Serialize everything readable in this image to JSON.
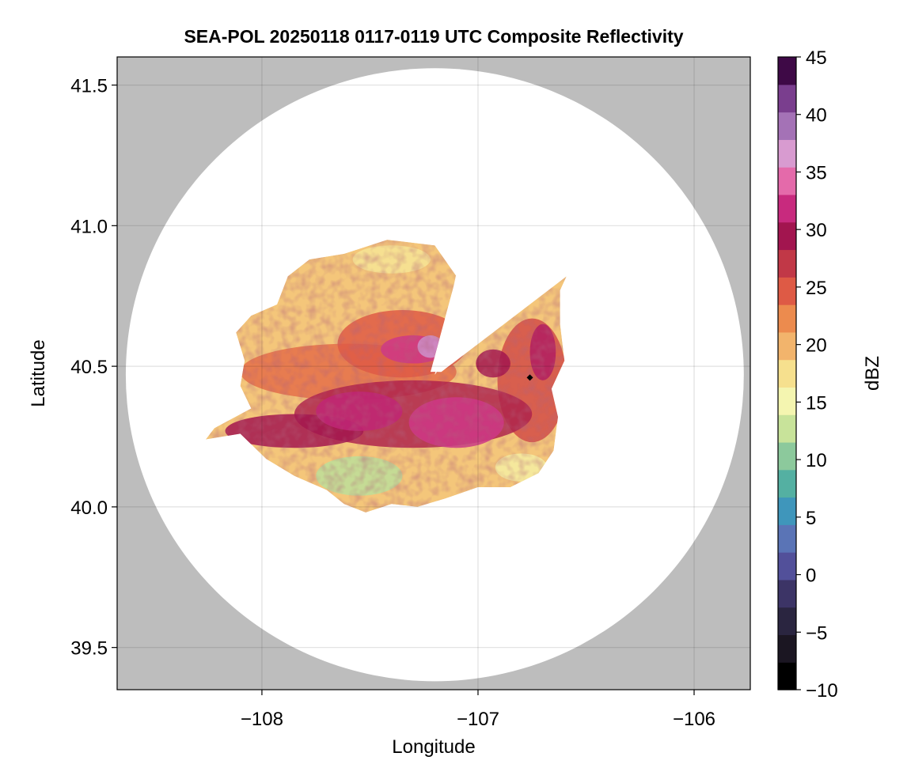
{
  "chart_data": {
    "type": "heatmap",
    "title": "SEA-POL 20250118 0117-0119 UTC Composite Reflectivity",
    "xlabel": "Longitude",
    "ylabel": "Latitude",
    "xlim": [
      -108.67,
      -105.74
    ],
    "ylim": [
      39.35,
      41.6
    ],
    "x_ticks": [
      -108,
      -107,
      -106
    ],
    "x_tick_labels": [
      "−108",
      "−107",
      "−106"
    ],
    "y_ticks": [
      39.5,
      40.0,
      40.5,
      41.0,
      41.5
    ],
    "y_tick_labels": [
      "39.5",
      "40.0",
      "40.5",
      "41.0",
      "41.5"
    ],
    "grid": true,
    "background_color": "#bdbdbd",
    "radar": {
      "center_lon": -107.2,
      "center_lat": 40.47,
      "range_lon": 1.43,
      "range_lat": 1.09
    },
    "beam_blockage_gap_deg": [
      52,
      78
    ],
    "echo_region": [
      [
        -108.26,
        40.24
      ],
      [
        -108.1,
        40.26
      ],
      [
        -107.98,
        40.17
      ],
      [
        -107.85,
        40.11
      ],
      [
        -107.7,
        40.06
      ],
      [
        -107.62,
        40.01
      ],
      [
        -107.52,
        39.98
      ],
      [
        -107.4,
        40.01
      ],
      [
        -107.28,
        40.0
      ],
      [
        -107.15,
        40.03
      ],
      [
        -107.0,
        40.07
      ],
      [
        -106.85,
        40.07
      ],
      [
        -106.72,
        40.12
      ],
      [
        -106.65,
        40.2
      ],
      [
        -106.63,
        40.32
      ],
      [
        -106.66,
        40.42
      ],
      [
        -106.6,
        40.52
      ],
      [
        -106.62,
        40.65
      ],
      [
        -106.62,
        40.77
      ],
      [
        -106.59,
        40.82
      ],
      [
        -107.17,
        40.48
      ],
      [
        -107.22,
        40.48
      ],
      [
        -107.1,
        40.82
      ],
      [
        -107.2,
        40.93
      ],
      [
        -107.42,
        40.95
      ],
      [
        -107.62,
        40.9
      ],
      [
        -107.78,
        40.88
      ],
      [
        -107.88,
        40.82
      ],
      [
        -107.93,
        40.72
      ],
      [
        -108.05,
        40.68
      ],
      [
        -108.12,
        40.62
      ],
      [
        -108.08,
        40.52
      ],
      [
        -108.1,
        40.43
      ],
      [
        -108.05,
        40.35
      ],
      [
        -108.22,
        40.28
      ]
    ],
    "reflectivity_features": [
      {
        "lon": -107.6,
        "lat": 40.48,
        "rlon": 0.5,
        "rlat": 0.1,
        "dbz": 24
      },
      {
        "lon": -107.35,
        "lat": 40.58,
        "rlon": 0.3,
        "rlat": 0.12,
        "dbz": 25
      },
      {
        "lon": -106.75,
        "lat": 40.45,
        "rlon": 0.16,
        "rlat": 0.22,
        "dbz": 26
      },
      {
        "lon": -107.3,
        "lat": 40.33,
        "rlon": 0.55,
        "rlat": 0.12,
        "dbz": 29
      },
      {
        "lon": -107.85,
        "lat": 40.27,
        "rlon": 0.32,
        "rlat": 0.06,
        "dbz": 30
      },
      {
        "lon": -107.55,
        "lat": 40.34,
        "rlon": 0.2,
        "rlat": 0.07,
        "dbz": 32
      },
      {
        "lon": -107.1,
        "lat": 40.3,
        "rlon": 0.22,
        "rlat": 0.09,
        "dbz": 33
      },
      {
        "lon": -107.3,
        "lat": 40.56,
        "rlon": 0.15,
        "rlat": 0.05,
        "dbz": 33
      },
      {
        "lon": -106.93,
        "lat": 40.51,
        "rlon": 0.08,
        "rlat": 0.05,
        "dbz": 30
      },
      {
        "lon": -106.7,
        "lat": 40.55,
        "rlon": 0.06,
        "rlat": 0.1,
        "dbz": 31
      },
      {
        "lon": -107.22,
        "lat": 40.57,
        "rlon": 0.06,
        "rlat": 0.04,
        "dbz": 38
      },
      {
        "lon": -107.55,
        "lat": 40.11,
        "rlon": 0.2,
        "rlat": 0.07,
        "dbz": 12
      },
      {
        "lon": -107.4,
        "lat": 40.88,
        "rlon": 0.18,
        "rlat": 0.05,
        "dbz": 17
      },
      {
        "lon": -106.8,
        "lat": 40.14,
        "rlon": 0.12,
        "rlat": 0.05,
        "dbz": 16
      }
    ],
    "marker": {
      "lon": -106.76,
      "lat": 40.46,
      "shape": "diamond",
      "color": "#000000"
    },
    "colorbar": {
      "label": "dBZ",
      "min": -10,
      "max": 45,
      "ticks": [
        -10,
        -5,
        0,
        5,
        10,
        15,
        20,
        25,
        30,
        35,
        40,
        45
      ],
      "tick_labels": [
        "−10",
        "−5",
        "0",
        "5",
        "10",
        "15",
        "20",
        "25",
        "30",
        "35",
        "40",
        "45"
      ],
      "colors": [
        "#000000",
        "#1b1622",
        "#2a2540",
        "#3c3466",
        "#52509a",
        "#5a74b6",
        "#3f96bb",
        "#54b0a2",
        "#8cc99c",
        "#c8e39a",
        "#f4f5b0",
        "#f6e08e",
        "#f2b46c",
        "#ec8b4e",
        "#de5a45",
        "#c13847",
        "#a2154f",
        "#c82a7e",
        "#e46aaa",
        "#d89bd0",
        "#a472b6",
        "#7a3e8e",
        "#3e0946"
      ]
    }
  }
}
